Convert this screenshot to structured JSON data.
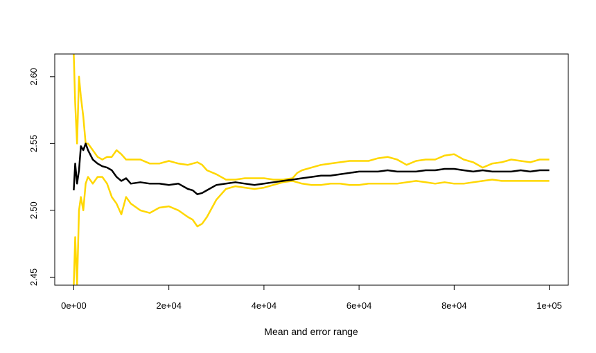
{
  "chart_data": {
    "type": "line",
    "title": "",
    "xlabel": "Mean and error range",
    "ylabel": "",
    "xlim": [
      -4000,
      104000
    ],
    "ylim": [
      2.444,
      2.617
    ],
    "grid": false,
    "legend": "none",
    "x_ticks": [
      0,
      20000,
      40000,
      60000,
      80000,
      100000
    ],
    "x_tick_labels": [
      "0e+00",
      "2e+04",
      "4e+04",
      "6e+04",
      "8e+04",
      "1e+05"
    ],
    "y_ticks": [
      2.45,
      2.5,
      2.55,
      2.6
    ],
    "y_tick_labels": [
      "2.45",
      "2.50",
      "2.55",
      "2.60"
    ],
    "colors": {
      "mean": "#000000",
      "bounds": "#FFD700"
    },
    "series": [
      {
        "role": "mean",
        "x": [
          0,
          300,
          700,
          1100,
          1500,
          2000,
          2500,
          3000,
          4000,
          5000,
          6000,
          7000,
          8000,
          9000,
          10000,
          11000,
          12000,
          14000,
          16000,
          18000,
          20000,
          22000,
          24000,
          25000,
          26000,
          27000,
          28000,
          30000,
          32000,
          34000,
          36000,
          38000,
          40000,
          42000,
          44000,
          46000,
          48000,
          50000,
          52000,
          54000,
          56000,
          58000,
          60000,
          62000,
          64000,
          66000,
          68000,
          70000,
          72000,
          74000,
          76000,
          78000,
          80000,
          82000,
          84000,
          86000,
          88000,
          90000,
          92000,
          94000,
          96000,
          98000,
          100000
        ],
        "y": [
          2.515,
          2.535,
          2.52,
          2.53,
          2.548,
          2.545,
          2.55,
          2.545,
          2.538,
          2.535,
          2.533,
          2.532,
          2.53,
          2.525,
          2.522,
          2.524,
          2.52,
          2.521,
          2.52,
          2.52,
          2.519,
          2.52,
          2.516,
          2.515,
          2.512,
          2.513,
          2.515,
          2.519,
          2.52,
          2.521,
          2.52,
          2.519,
          2.52,
          2.521,
          2.522,
          2.523,
          2.524,
          2.525,
          2.526,
          2.526,
          2.527,
          2.528,
          2.529,
          2.529,
          2.529,
          2.53,
          2.529,
          2.529,
          2.529,
          2.53,
          2.53,
          2.531,
          2.531,
          2.53,
          2.529,
          2.53,
          2.529,
          2.529,
          2.529,
          2.53,
          2.529,
          2.53,
          2.53
        ]
      },
      {
        "role": "upper",
        "x": [
          0,
          300,
          700,
          1100,
          1500,
          2000,
          2500,
          3000,
          4000,
          5000,
          6000,
          7000,
          8000,
          9000,
          10000,
          11000,
          12000,
          14000,
          16000,
          18000,
          20000,
          22000,
          24000,
          26000,
          27000,
          28000,
          30000,
          32000,
          34000,
          36000,
          38000,
          40000,
          42000,
          44000,
          46000,
          47000,
          48000,
          50000,
          52000,
          54000,
          56000,
          58000,
          60000,
          62000,
          64000,
          66000,
          68000,
          70000,
          72000,
          74000,
          76000,
          78000,
          80000,
          82000,
          84000,
          86000,
          88000,
          90000,
          92000,
          94000,
          96000,
          98000,
          100000
        ],
        "y": [
          2.617,
          2.58,
          2.55,
          2.6,
          2.585,
          2.57,
          2.55,
          2.55,
          2.545,
          2.54,
          2.538,
          2.54,
          2.54,
          2.545,
          2.542,
          2.538,
          2.538,
          2.538,
          2.535,
          2.535,
          2.537,
          2.535,
          2.534,
          2.536,
          2.534,
          2.53,
          2.527,
          2.523,
          2.523,
          2.524,
          2.524,
          2.524,
          2.523,
          2.523,
          2.524,
          2.528,
          2.53,
          2.532,
          2.534,
          2.535,
          2.536,
          2.537,
          2.537,
          2.537,
          2.539,
          2.54,
          2.538,
          2.534,
          2.537,
          2.538,
          2.538,
          2.541,
          2.542,
          2.538,
          2.536,
          2.532,
          2.535,
          2.536,
          2.538,
          2.537,
          2.536,
          2.538,
          2.538
        ]
      },
      {
        "role": "lower",
        "x": [
          0,
          300,
          700,
          1100,
          1500,
          2000,
          2500,
          3000,
          4000,
          5000,
          6000,
          7000,
          8000,
          9000,
          10000,
          11000,
          12000,
          14000,
          16000,
          18000,
          20000,
          22000,
          24000,
          25000,
          26000,
          27000,
          28000,
          30000,
          32000,
          34000,
          36000,
          38000,
          40000,
          42000,
          44000,
          46000,
          48000,
          50000,
          52000,
          54000,
          56000,
          58000,
          60000,
          62000,
          64000,
          66000,
          68000,
          70000,
          72000,
          74000,
          76000,
          78000,
          80000,
          82000,
          84000,
          86000,
          88000,
          90000,
          92000,
          94000,
          96000,
          98000,
          100000
        ],
        "y": [
          2.444,
          2.48,
          2.444,
          2.5,
          2.51,
          2.5,
          2.52,
          2.525,
          2.52,
          2.525,
          2.525,
          2.52,
          2.51,
          2.505,
          2.497,
          2.51,
          2.505,
          2.5,
          2.498,
          2.502,
          2.503,
          2.5,
          2.495,
          2.493,
          2.488,
          2.49,
          2.495,
          2.508,
          2.516,
          2.518,
          2.517,
          2.516,
          2.517,
          2.519,
          2.521,
          2.522,
          2.52,
          2.519,
          2.519,
          2.52,
          2.52,
          2.519,
          2.519,
          2.52,
          2.52,
          2.52,
          2.52,
          2.521,
          2.522,
          2.521,
          2.52,
          2.521,
          2.52,
          2.52,
          2.521,
          2.522,
          2.523,
          2.522,
          2.522,
          2.522,
          2.522,
          2.522,
          2.522
        ]
      }
    ]
  }
}
